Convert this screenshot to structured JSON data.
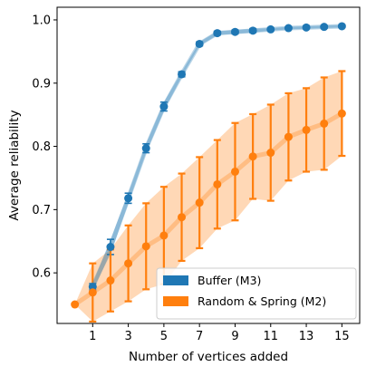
{
  "chart_data": {
    "type": "line",
    "title": "",
    "xlabel": "Number of vertices added",
    "ylabel": "Average reliability",
    "xlim": [
      -1,
      16
    ],
    "ylim": [
      0.52,
      1.02
    ],
    "xticks": [
      1,
      3,
      5,
      7,
      9,
      11,
      13,
      15
    ],
    "yticks": [
      0.6,
      0.7,
      0.8,
      0.9,
      1.0
    ],
    "ytick_labels": [
      "0.6",
      "0.7",
      "0.8",
      "0.9",
      "1.0"
    ],
    "grid": false,
    "legend_position": "lower-right",
    "series": [
      {
        "name": "Buffer (M3)",
        "color": "#1f77b4",
        "x": [
          1,
          2,
          3,
          4,
          5,
          6,
          7,
          8,
          9,
          10,
          11,
          12,
          13,
          14,
          15
        ],
        "values": [
          0.578,
          0.641,
          0.718,
          0.797,
          0.863,
          0.914,
          0.962,
          0.979,
          0.981,
          0.983,
          0.985,
          0.987,
          0.988,
          0.989,
          0.99
        ],
        "error": [
          0.005,
          0.012,
          0.008,
          0.007,
          0.007,
          0.004,
          0.003,
          0.003,
          0.003,
          0.003,
          0.002,
          0.002,
          0.002,
          0.002,
          0.002
        ]
      },
      {
        "name": "Random & Spring (M2)",
        "color": "#ff7f0e",
        "x": [
          0,
          1,
          2,
          3,
          4,
          5,
          6,
          7,
          8,
          9,
          10,
          11,
          12,
          13,
          14,
          15
        ],
        "values": [
          0.55,
          0.569,
          0.588,
          0.615,
          0.642,
          0.659,
          0.688,
          0.711,
          0.74,
          0.76,
          0.784,
          0.79,
          0.815,
          0.826,
          0.836,
          0.852
        ],
        "error": [
          0,
          0.046,
          0.049,
          0.06,
          0.068,
          0.077,
          0.069,
          0.072,
          0.07,
          0.077,
          0.067,
          0.076,
          0.069,
          0.066,
          0.073,
          0.067
        ]
      }
    ]
  }
}
